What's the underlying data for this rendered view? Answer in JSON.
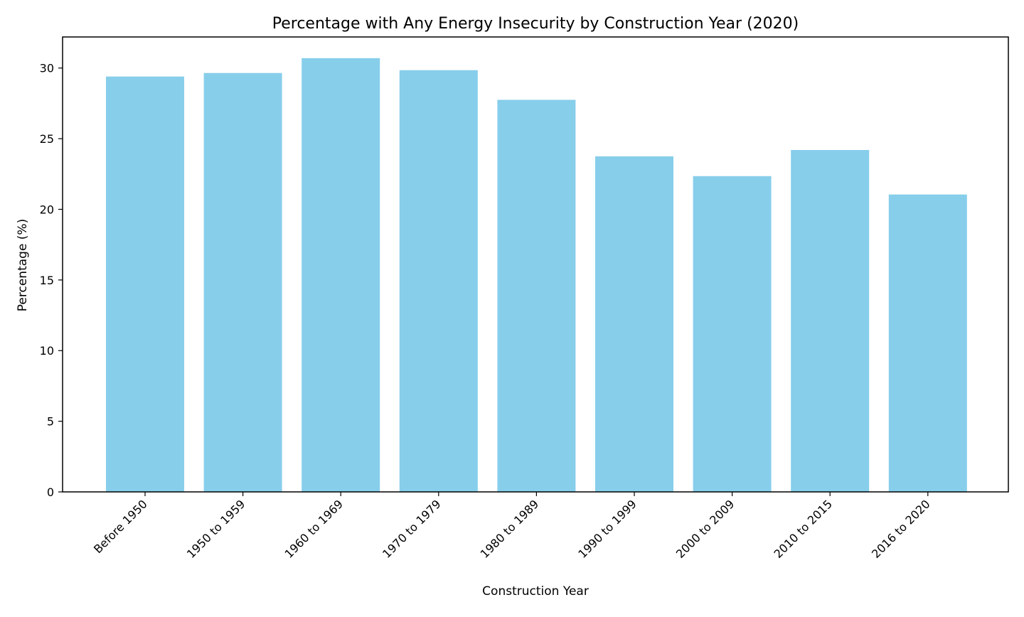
{
  "chart_data": {
    "type": "bar",
    "title": "Percentage with Any Energy Insecurity by Construction Year (2020)",
    "xlabel": "Construction Year",
    "ylabel": "Percentage (%)",
    "categories": [
      "Before 1950",
      "1950 to 1959",
      "1960 to 1969",
      "1970 to 1979",
      "1980 to 1989",
      "1990 to 1999",
      "2000 to 2009",
      "2010 to 2015",
      "2016 to 2020"
    ],
    "values": [
      29.4,
      29.65,
      30.7,
      29.85,
      27.75,
      23.75,
      22.35,
      24.2,
      21.05
    ],
    "ylim": [
      0,
      32.2
    ],
    "yticks": [
      0,
      5,
      10,
      15,
      20,
      25,
      30
    ],
    "bar_color": "#87CEEB",
    "grid": false,
    "legend": "none"
  }
}
